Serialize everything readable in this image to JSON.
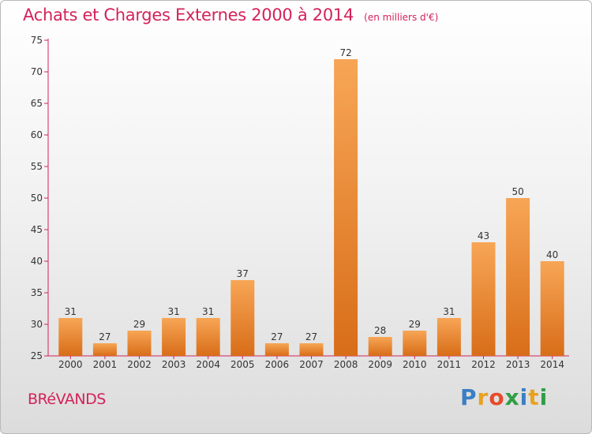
{
  "title": "Achats et Charges Externes 2000 à 2014",
  "unit": "(en milliers d'€)",
  "commune": "BRéVANDS",
  "logo": {
    "text": "Proxiti",
    "letters": [
      "P",
      "r",
      "o",
      "x",
      "i",
      "t",
      "i"
    ],
    "colors": [
      "#3a7fc4",
      "#e8a21f",
      "#e84a2b",
      "#2f9e46",
      "#3a7fc4",
      "#e8a21f",
      "#2f9e46"
    ]
  },
  "colors": {
    "bar_top": "#f7a656",
    "bar_bottom": "#d86d18",
    "axis": "#d4225a",
    "title": "#d4225a"
  },
  "chart_data": {
    "type": "bar",
    "title": "Achats et Charges Externes 2000 à 2014",
    "categories": [
      "2000",
      "2001",
      "2002",
      "2003",
      "2004",
      "2005",
      "2006",
      "2007",
      "2008",
      "2009",
      "2010",
      "2011",
      "2012",
      "2013",
      "2014"
    ],
    "values": [
      31,
      27,
      29,
      31,
      31,
      37,
      27,
      27,
      72,
      28,
      29,
      31,
      43,
      50,
      40
    ],
    "ylim": [
      25,
      75
    ],
    "yticks": [
      25,
      30,
      35,
      40,
      45,
      50,
      55,
      60,
      65,
      70,
      75
    ],
    "grid": false
  }
}
